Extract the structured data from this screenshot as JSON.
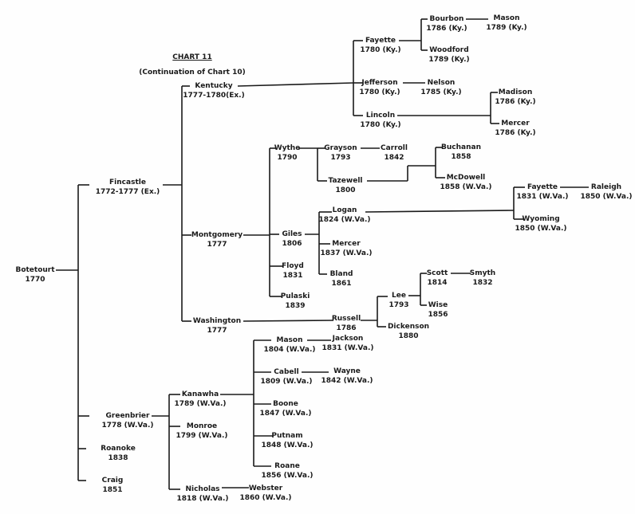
{
  "title": "CHART 11",
  "subtitle": "(Continuation of Chart 10)",
  "line_color": "#1a1a1a",
  "nodes": {
    "botetourt": {
      "name": "Botetourt",
      "date": "1770"
    },
    "fincastle": {
      "name": "Fincastle",
      "date": "1772-1777 (Ex.)"
    },
    "greenbrier": {
      "name": "Greenbrier",
      "date": "1778 (W.Va.)"
    },
    "roanoke": {
      "name": "Roanoke",
      "date": "1838"
    },
    "craig": {
      "name": "Craig",
      "date": "1851"
    },
    "kentucky": {
      "name": "Kentucky",
      "date": "1777-1780(Ex.)"
    },
    "montgomery": {
      "name": "Montgomery",
      "date": "1777"
    },
    "washington": {
      "name": "Washington",
      "date": "1777"
    },
    "fayette_ky": {
      "name": "Fayette",
      "date": "1780 (Ky.)"
    },
    "jefferson": {
      "name": "Jefferson",
      "date": "1780 (Ky.)"
    },
    "lincoln": {
      "name": "Lincoln",
      "date": "1780 (Ky.)"
    },
    "bourbon": {
      "name": "Bourbon",
      "date": "1786 (Ky.)"
    },
    "woodford": {
      "name": "Woodford",
      "date": "1789 (Ky.)"
    },
    "mason_ky": {
      "name": "Mason",
      "date": "1789 (Ky.)"
    },
    "nelson": {
      "name": "Nelson",
      "date": "1785 (Ky.)"
    },
    "madison": {
      "name": "Madison",
      "date": "1786 (Ky.)"
    },
    "mercer_ky": {
      "name": "Mercer",
      "date": "1786 (Ky.)"
    },
    "wythe": {
      "name": "Wythe",
      "date": "1790"
    },
    "grayson": {
      "name": "Grayson",
      "date": "1793"
    },
    "carroll": {
      "name": "Carroll",
      "date": "1842"
    },
    "tazewell": {
      "name": "Tazewell",
      "date": "1800"
    },
    "buchanan": {
      "name": "Buchanan",
      "date": "1858"
    },
    "mcdowell": {
      "name": "McDowell",
      "date": "1858 (W.Va.)"
    },
    "giles": {
      "name": "Giles",
      "date": "1806"
    },
    "logan": {
      "name": "Logan",
      "date": "1824 (W.Va.)"
    },
    "fayette_wv": {
      "name": "Fayette",
      "date": "1831 (W.Va.)"
    },
    "raleigh": {
      "name": "Raleigh",
      "date": "1850 (W.Va.)"
    },
    "wyoming": {
      "name": "Wyoming",
      "date": "1850 (W.Va.)"
    },
    "mercer_wv": {
      "name": "Mercer",
      "date": "1837 (W.Va.)"
    },
    "bland": {
      "name": "Bland",
      "date": "1861"
    },
    "floyd": {
      "name": "Floyd",
      "date": "1831"
    },
    "pulaski": {
      "name": "Pulaski",
      "date": "1839"
    },
    "russell": {
      "name": "Russell",
      "date": "1786"
    },
    "lee": {
      "name": "Lee",
      "date": "1793"
    },
    "scott": {
      "name": "Scott",
      "date": "1814"
    },
    "smyth": {
      "name": "Smyth",
      "date": "1832"
    },
    "wise": {
      "name": "Wise",
      "date": "1856"
    },
    "dickenson": {
      "name": "Dickenson",
      "date": "1880"
    },
    "kanawha": {
      "name": "Kanawha",
      "date": "1789 (W.Va.)"
    },
    "monroe": {
      "name": "Monroe",
      "date": "1799 (W.Va.)"
    },
    "nicholas": {
      "name": "Nicholas",
      "date": "1818 (W.Va.)"
    },
    "webster": {
      "name": "Webster",
      "date": "1860 (W.Va.)"
    },
    "mason_wv": {
      "name": "Mason",
      "date": "1804 (W.Va.)"
    },
    "jackson": {
      "name": "Jackson",
      "date": "1831 (W.Va.)"
    },
    "cabell": {
      "name": "Cabell",
      "date": "1809 (W.Va.)"
    },
    "wayne": {
      "name": "Wayne",
      "date": "1842 (W.Va.)"
    },
    "boone": {
      "name": "Boone",
      "date": "1847 (W.Va.)"
    },
    "putnam": {
      "name": "Putnam",
      "date": "1848 (W.Va.)"
    },
    "roane": {
      "name": "Roane",
      "date": "1856 (W.Va.)"
    }
  }
}
